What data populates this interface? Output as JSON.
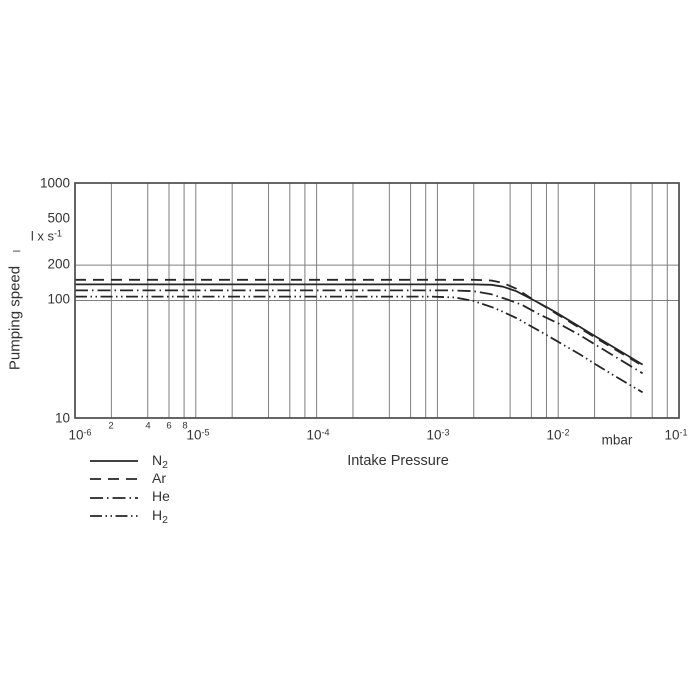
{
  "figure": {
    "background": "#ffffff",
    "line_color": "#262626",
    "grid_color": "#7f7f7f",
    "frame_color": "#4c4c4c",
    "text_color": "#333333"
  },
  "y_axis": {
    "title": "Pumping speed",
    "unit_base": "l x s",
    "unit_exp": "-1",
    "unit_dash": "–",
    "tick_labels": [
      "1000",
      "500",
      "200",
      "100",
      "10"
    ]
  },
  "x_axis": {
    "title": "Intake Pressure",
    "unit": "mbar",
    "major_ticks": [
      {
        "base": "10",
        "exp": "-6"
      },
      {
        "base": "10",
        "exp": "-5"
      },
      {
        "base": "10",
        "exp": "-4"
      },
      {
        "base": "10",
        "exp": "-3"
      },
      {
        "base": "10",
        "exp": "-2"
      },
      {
        "base": "10",
        "exp": "-1"
      }
    ],
    "minor_tick_labels": [
      "2",
      "4",
      "6",
      "8"
    ]
  },
  "legend": {
    "items": [
      {
        "pre": "N",
        "sub": "2"
      },
      {
        "pre": "Ar",
        "sub": ""
      },
      {
        "pre": "He",
        "sub": ""
      },
      {
        "pre": "H",
        "sub": "2"
      }
    ]
  },
  "chart_data": {
    "type": "line",
    "title": "",
    "xlabel": "Intake Pressure",
    "ylabel": "Pumping speed",
    "x_unit": "mbar",
    "y_unit": "l x s^-1",
    "x_scale": "log",
    "y_scale": "log",
    "xlim": [
      1e-06,
      0.1
    ],
    "ylim": [
      10,
      1000
    ],
    "grid": true,
    "legend_position": "below-left",
    "x_gridlines": [
      1e-06,
      2e-06,
      4e-06,
      6e-06,
      8e-06,
      1e-05,
      2e-05,
      4e-05,
      6e-05,
      8e-05,
      0.0001,
      0.0002,
      0.0004,
      0.0006,
      0.0008,
      0.001,
      0.002,
      0.004,
      0.006,
      0.008,
      0.01,
      0.02,
      0.04,
      0.06,
      0.08,
      0.1
    ],
    "y_gridlines": [
      100,
      200
    ],
    "series": [
      {
        "name": "N2",
        "style": "solid",
        "dash": "",
        "points": [
          [
            1e-06,
            137
          ],
          [
            0.002,
            137
          ],
          [
            0.0028,
            136
          ],
          [
            0.0035,
            131
          ],
          [
            0.0045,
            120
          ],
          [
            0.006,
            103
          ],
          [
            0.008,
            88
          ],
          [
            0.01,
            77
          ],
          [
            0.015,
            60
          ],
          [
            0.02,
            50
          ],
          [
            0.03,
            39
          ],
          [
            0.05,
            28.5
          ]
        ]
      },
      {
        "name": "Ar",
        "style": "dashed",
        "dash": "11,7",
        "points": [
          [
            1e-06,
            150
          ],
          [
            0.002,
            150
          ],
          [
            0.0028,
            148
          ],
          [
            0.0035,
            141
          ],
          [
            0.0045,
            126
          ],
          [
            0.006,
            104
          ],
          [
            0.008,
            87
          ],
          [
            0.01,
            75.5
          ],
          [
            0.015,
            58.5
          ],
          [
            0.02,
            48.7
          ],
          [
            0.03,
            38
          ],
          [
            0.05,
            27.8
          ]
        ]
      },
      {
        "name": "He",
        "style": "dash-dot",
        "dash": "13,4,1.5,4",
        "points": [
          [
            1e-06,
            122
          ],
          [
            0.0013,
            122
          ],
          [
            0.002,
            120
          ],
          [
            0.0028,
            113
          ],
          [
            0.0038,
            102
          ],
          [
            0.005,
            92
          ],
          [
            0.007,
            76
          ],
          [
            0.01,
            64
          ],
          [
            0.015,
            51
          ],
          [
            0.02,
            42.5
          ],
          [
            0.03,
            33
          ],
          [
            0.05,
            24
          ]
        ]
      },
      {
        "name": "H2",
        "style": "dash-dot-dot",
        "dash": "12,3.5,1.5,3.5,1.5,3.5",
        "points": [
          [
            1e-06,
            108
          ],
          [
            0.0009,
            108
          ],
          [
            0.0014,
            106
          ],
          [
            0.002,
            99
          ],
          [
            0.003,
            86
          ],
          [
            0.0045,
            71
          ],
          [
            0.007,
            55
          ],
          [
            0.01,
            44.5
          ],
          [
            0.015,
            35
          ],
          [
            0.02,
            29
          ],
          [
            0.03,
            22.5
          ],
          [
            0.05,
            16.5
          ]
        ]
      }
    ]
  }
}
